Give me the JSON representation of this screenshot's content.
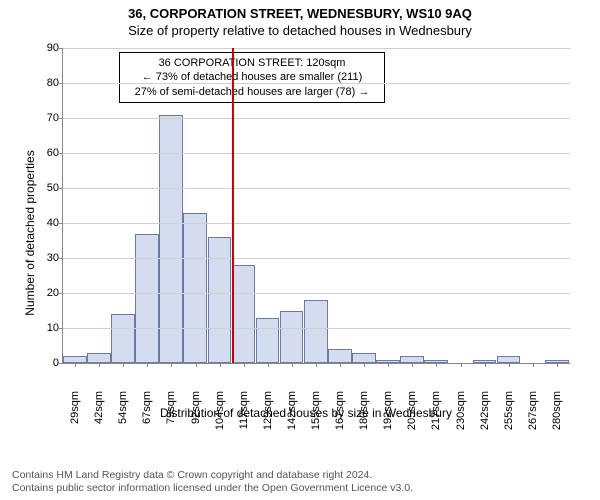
{
  "chart": {
    "type": "histogram",
    "title_main": "36, CORPORATION STREET, WEDNESBURY, WS10 9AQ",
    "title_sub": "Size of property relative to detached houses in Wednesbury",
    "ylabel": "Number of detached properties",
    "xlabel": "Distribution of detached houses by size in Wednesbury",
    "title_fontsize": 13,
    "label_fontsize": 12,
    "tick_fontsize": 11,
    "ylim": [
      0,
      90
    ],
    "ytick_step": 10,
    "background_color": "#ffffff",
    "grid_color": "#d0d0d0",
    "axis_color": "#888888",
    "bar_fill": "#d4dcf0",
    "bar_border": "#6a7aa3",
    "marker_color": "#d00000",
    "marker_x_index": 7,
    "categories": [
      "29sqm",
      "42sqm",
      "54sqm",
      "67sqm",
      "79sqm",
      "92sqm",
      "104sqm",
      "117sqm",
      "129sqm",
      "142sqm",
      "155sqm",
      "167sqm",
      "180sqm",
      "192sqm",
      "205sqm",
      "217sqm",
      "230sqm",
      "242sqm",
      "255sqm",
      "267sqm",
      "280sqm"
    ],
    "values": [
      2,
      3,
      14,
      37,
      71,
      43,
      36,
      28,
      13,
      15,
      18,
      4,
      3,
      1,
      2,
      1,
      0,
      1,
      2,
      0,
      1
    ],
    "annotation": {
      "line1": "36 CORPORATION STREET: 120sqm",
      "line2": "← 73% of detached houses are smaller (211)",
      "line3": "27% of semi-detached houses are larger (78) →",
      "x_index_center": 7,
      "border_color": "#000000",
      "background": "#ffffff",
      "fontsize": 11
    }
  },
  "footer": {
    "line1": "Contains HM Land Registry data © Crown copyright and database right 2024.",
    "line2": "Contains public sector information licensed under the Open Government Licence v3.0.",
    "color": "#555555",
    "fontsize": 10.5
  }
}
